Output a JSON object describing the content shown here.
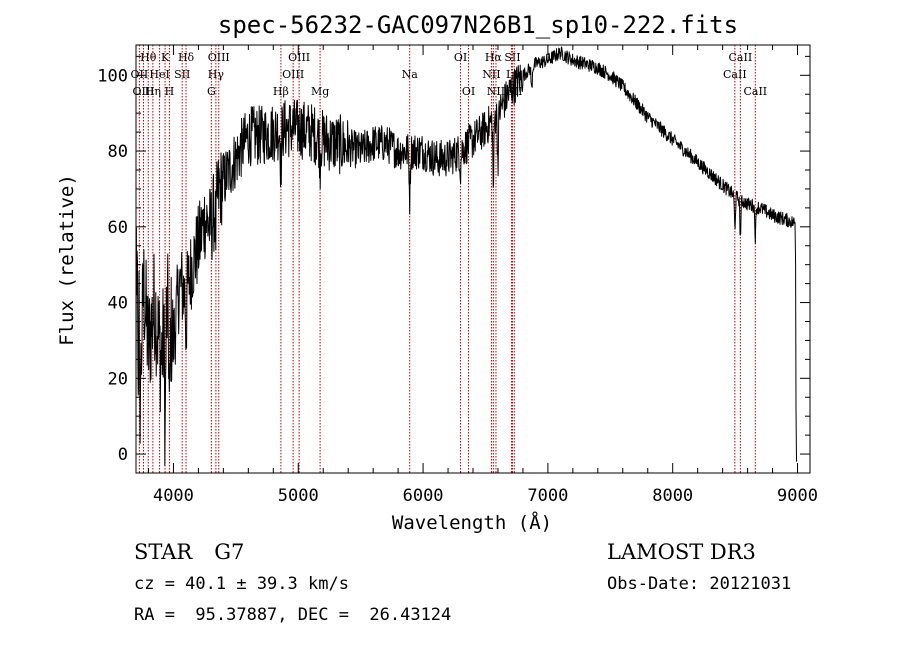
{
  "chart_data": {
    "type": "line",
    "title": "spec-56232-GAC097N26B1_sp10-222.fits",
    "xlabel": "Wavelength (Å)",
    "ylabel": "Flux (relative)",
    "xlim": [
      3700,
      9100
    ],
    "ylim": [
      -5,
      108
    ],
    "x_ticks": [
      4000,
      5000,
      6000,
      7000,
      8000,
      9000
    ],
    "y_ticks": [
      0,
      20,
      40,
      60,
      80,
      100
    ],
    "grid": false,
    "series": [
      {
        "name": "flux",
        "color": "#000000",
        "anchors": [
          [
            3700,
            22
          ],
          [
            3730,
            12
          ],
          [
            3760,
            45
          ],
          [
            3800,
            28
          ],
          [
            3850,
            40
          ],
          [
            3900,
            25
          ],
          [
            3950,
            38
          ],
          [
            4000,
            30
          ],
          [
            4050,
            45
          ],
          [
            4100,
            42
          ],
          [
            4150,
            50
          ],
          [
            4200,
            55
          ],
          [
            4250,
            62
          ],
          [
            4300,
            60
          ],
          [
            4350,
            68
          ],
          [
            4400,
            72
          ],
          [
            4500,
            78
          ],
          [
            4600,
            84
          ],
          [
            4700,
            84
          ],
          [
            4800,
            85
          ],
          [
            4900,
            86
          ],
          [
            5000,
            86
          ],
          [
            5100,
            85
          ],
          [
            5200,
            83
          ],
          [
            5300,
            82
          ],
          [
            5400,
            81
          ],
          [
            5500,
            80
          ],
          [
            5600,
            82
          ],
          [
            5700,
            82
          ],
          [
            5800,
            80
          ],
          [
            5900,
            80
          ],
          [
            6000,
            80
          ],
          [
            6100,
            78
          ],
          [
            6200,
            78
          ],
          [
            6300,
            80
          ],
          [
            6400,
            83
          ],
          [
            6500,
            86
          ],
          [
            6600,
            90
          ],
          [
            6700,
            96
          ],
          [
            6800,
            100
          ],
          [
            6900,
            103
          ],
          [
            7000,
            104
          ],
          [
            7100,
            106
          ],
          [
            7200,
            104
          ],
          [
            7300,
            103
          ],
          [
            7400,
            102
          ],
          [
            7500,
            100
          ],
          [
            7600,
            97
          ],
          [
            7700,
            93
          ],
          [
            7800,
            89
          ],
          [
            7900,
            86
          ],
          [
            8000,
            83
          ],
          [
            8100,
            80
          ],
          [
            8200,
            77
          ],
          [
            8300,
            74
          ],
          [
            8400,
            71
          ],
          [
            8500,
            68
          ],
          [
            8600,
            66
          ],
          [
            8700,
            65
          ],
          [
            8800,
            63
          ],
          [
            8900,
            62
          ],
          [
            8980,
            61
          ]
        ],
        "dips": [
          [
            3933,
            30
          ],
          [
            3968,
            25
          ],
          [
            4101,
            10
          ],
          [
            4340,
            8
          ],
          [
            4861,
            10
          ],
          [
            5175,
            6
          ],
          [
            5893,
            12
          ],
          [
            6300,
            5
          ],
          [
            6563,
            18
          ],
          [
            6600,
            12
          ],
          [
            6870,
            6
          ],
          [
            8498,
            8
          ],
          [
            8542,
            10
          ],
          [
            8662,
            8
          ]
        ]
      }
    ],
    "line_marks": [
      {
        "label": "Hθ",
        "wave": 3798,
        "row": 1
      },
      {
        "label": "OII",
        "wave": 3727,
        "row": 2
      },
      {
        "label": "OIII",
        "wave": 3760,
        "row": 3
      },
      {
        "label": "K",
        "wave": 3933,
        "row": 1
      },
      {
        "label": "HeI",
        "wave": 3889,
        "row": 2
      },
      {
        "label": "Hη",
        "wave": 3835,
        "row": 3
      },
      {
        "label": "Hδ",
        "wave": 4101,
        "row": 1
      },
      {
        "label": "SII",
        "wave": 4070,
        "row": 2
      },
      {
        "label": "H",
        "wave": 3968,
        "row": 3
      },
      {
        "label": "OIII",
        "wave": 4363,
        "row": 1
      },
      {
        "label": "Hγ",
        "wave": 4340,
        "row": 2
      },
      {
        "label": "G",
        "wave": 4304,
        "row": 3
      },
      {
        "label": "OIII",
        "wave": 5007,
        "row": 1
      },
      {
        "label": "OIII",
        "wave": 4959,
        "row": 2
      },
      {
        "label": "Hβ",
        "wave": 4861,
        "row": 3
      },
      {
        "label": "Mg",
        "wave": 5175,
        "row": 3
      },
      {
        "label": "Na",
        "wave": 5893,
        "row": 2
      },
      {
        "label": "OI",
        "wave": 6300,
        "row": 1
      },
      {
        "label": "OI",
        "wave": 6364,
        "row": 3
      },
      {
        "label": "Hα",
        "wave": 6563,
        "row": 1
      },
      {
        "label": "SII",
        "wave": 6716,
        "row": 1
      },
      {
        "label": "NII",
        "wave": 6548,
        "row": 2
      },
      {
        "label": "Li",
        "wave": 6708,
        "row": 2
      },
      {
        "label": "NII",
        "wave": 6584,
        "row": 3
      },
      {
        "label": "SII",
        "wave": 6731,
        "row": 3
      },
      {
        "label": "CaII",
        "wave": 8542,
        "row": 1
      },
      {
        "label": "CaII",
        "wave": 8498,
        "row": 2
      },
      {
        "label": "CaII",
        "wave": 8662,
        "row": 3
      }
    ],
    "line_mark_color": "#c00000"
  },
  "info": {
    "object_class": "STAR",
    "subclass": "G7",
    "velocity": "cz = 40.1 ± 39.3 km/s",
    "coordinates": "RA =  95.37887, DEC =  26.43124",
    "survey": "LAMOST DR3",
    "obs_date": "Obs-Date: 20121031"
  }
}
